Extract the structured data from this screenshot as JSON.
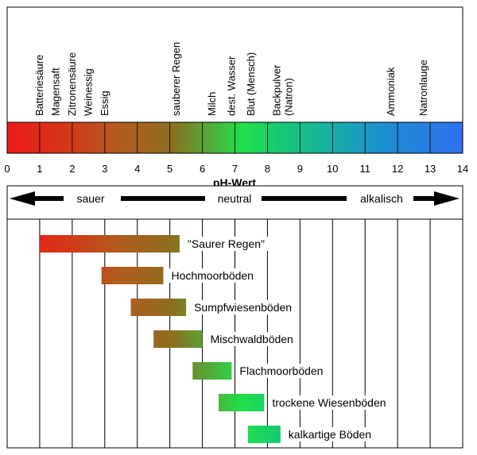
{
  "chart_data": {
    "type": "bar",
    "title": "pH-Wert",
    "x_axis": {
      "min": 0,
      "max": 14,
      "ticks": [
        "0",
        "1",
        "2",
        "3",
        "4",
        "5",
        "6",
        "7",
        "8",
        "9",
        "10",
        "11",
        "12",
        "13",
        "14"
      ]
    },
    "scale": {
      "sauer": "sauer",
      "neutral": "neutral",
      "alkalisch": "alkalisch"
    },
    "substances": [
      {
        "ph": 1.0,
        "lines": [
          "Batteriesäure"
        ]
      },
      {
        "ph": 1.5,
        "lines": [
          "Magensaft"
        ]
      },
      {
        "ph": 2.0,
        "lines": [
          "Zitronensäure"
        ]
      },
      {
        "ph": 2.5,
        "lines": [
          "Weinessig"
        ]
      },
      {
        "ph": 3.0,
        "lines": [
          "Essig"
        ]
      },
      {
        "ph": 5.2,
        "lines": [
          "sauberer Regen"
        ]
      },
      {
        "ph": 6.3,
        "lines": [
          "Milch"
        ]
      },
      {
        "ph": 6.9,
        "lines": [
          "dest. Wasser"
        ]
      },
      {
        "ph": 7.5,
        "lines": [
          "Blut (Mensch)"
        ]
      },
      {
        "ph": 8.3,
        "lines": [
          "Backpulver",
          "(Natron)"
        ]
      },
      {
        "ph": 11.8,
        "lines": [
          "Ammoniak"
        ]
      },
      {
        "ph": 12.8,
        "lines": [
          "Natronlauge"
        ]
      }
    ],
    "ranges": [
      {
        "label": "\"Saurer Regen\"",
        "from": 1.0,
        "to": 5.3
      },
      {
        "label": "Hochmoorböden",
        "from": 2.9,
        "to": 4.8
      },
      {
        "label": "Sumpfwiesenböden",
        "from": 3.8,
        "to": 5.5
      },
      {
        "label": "Mischwaldböden",
        "from": 4.5,
        "to": 6.0
      },
      {
        "label": "Flachmoorböden",
        "from": 5.7,
        "to": 6.9
      },
      {
        "label": "trockene Wiesenböden",
        "from": 6.5,
        "to": 7.9
      },
      {
        "label": "kalkartige Böden",
        "from": 7.4,
        "to": 8.4
      }
    ]
  }
}
